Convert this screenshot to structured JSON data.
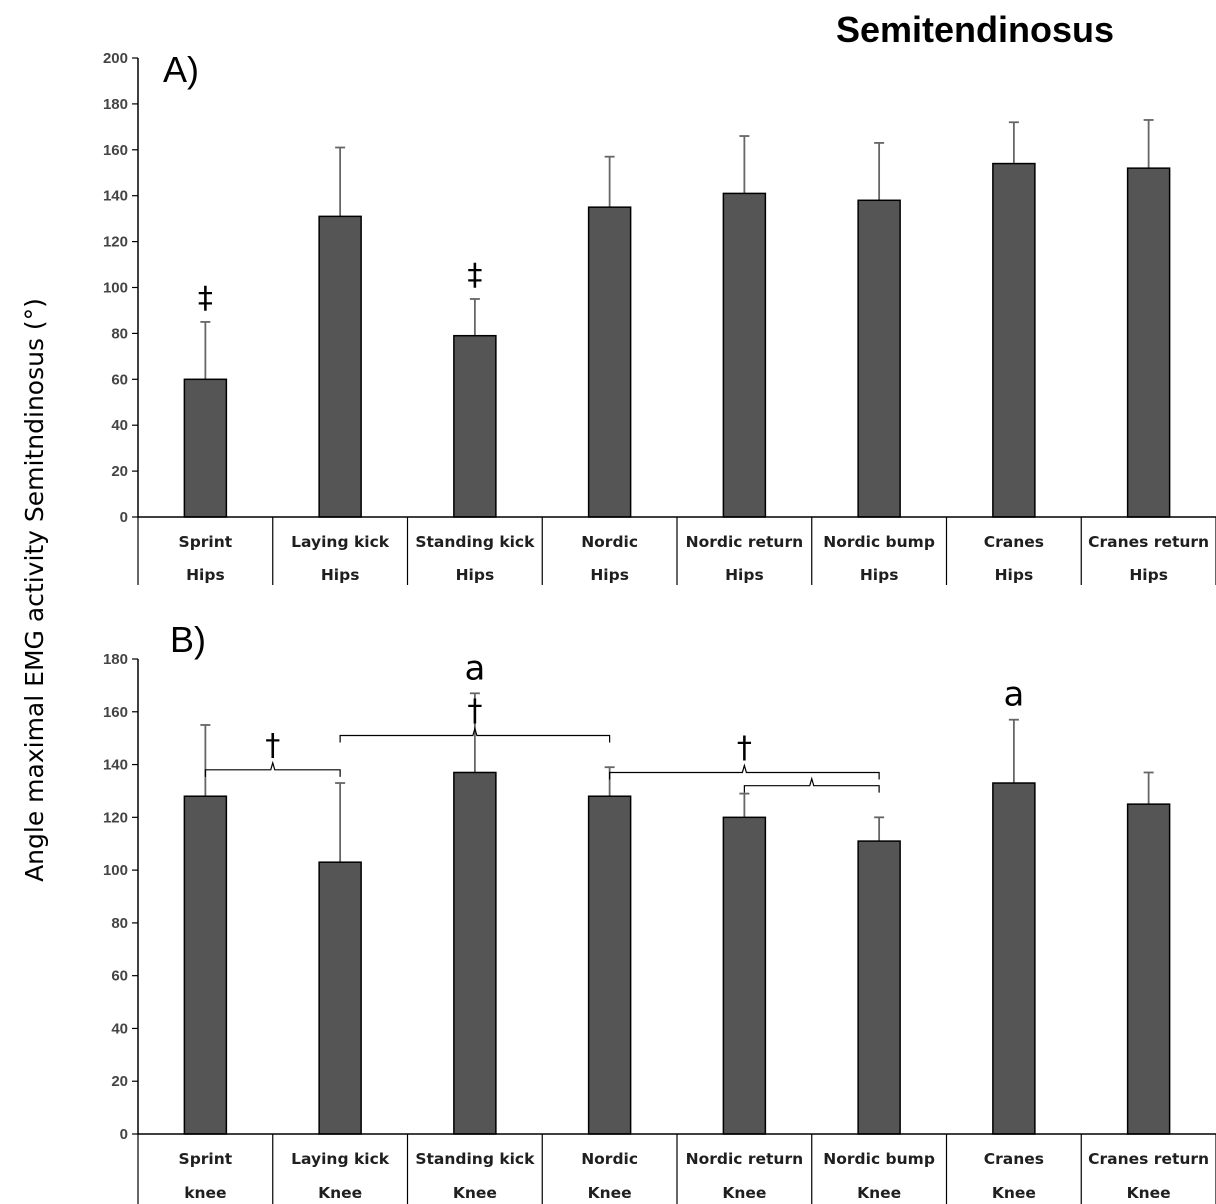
{
  "figure": {
    "title": "Semitendinosus",
    "ylabel": "Angle maximal EMG activity Semitndinosus (°)"
  },
  "colors": {
    "bar": "#555555",
    "bar_edge": "#000000",
    "error": "#666666",
    "axis": "#000000"
  },
  "chart_data": [
    {
      "type": "bar",
      "panel_label": "A)",
      "ylim": [
        0,
        200
      ],
      "yticks": [
        0,
        20,
        40,
        60,
        80,
        100,
        120,
        140,
        160,
        180,
        200
      ],
      "grid": false,
      "categories": [
        "Sprint",
        "Laying kick",
        "Standing kick",
        "Nordic",
        "Nordic return",
        "Nordic bump",
        "Cranes",
        "Cranes return"
      ],
      "sub_labels": [
        "Hips",
        "Hips",
        "Hips",
        "Hips",
        "Hips",
        "Hips",
        "Hips",
        "Hips"
      ],
      "values": [
        60,
        131,
        79,
        135,
        141,
        138,
        154,
        152
      ],
      "errors": [
        25,
        30,
        16,
        22,
        25,
        25,
        18,
        21
      ],
      "annotations": [
        {
          "index": 0,
          "text": "‡"
        },
        {
          "index": 2,
          "text": "‡"
        }
      ]
    },
    {
      "type": "bar",
      "panel_label": "B)",
      "ylim": [
        0,
        180
      ],
      "yticks": [
        0,
        20,
        40,
        60,
        80,
        100,
        120,
        140,
        160,
        180
      ],
      "grid": false,
      "categories": [
        "Sprint",
        "Laying kick",
        "Standing kick",
        "Nordic",
        "Nordic return",
        "Nordic bump",
        "Cranes",
        "Cranes return"
      ],
      "sub_labels": [
        "knee",
        "Knee",
        "Knee",
        "Knee",
        "Knee",
        "Knee",
        "Knee",
        "Knee"
      ],
      "values": [
        128,
        103,
        137,
        128,
        120,
        111,
        133,
        125
      ],
      "errors": [
        27,
        30,
        30,
        11,
        9,
        9,
        24,
        12
      ],
      "annotations": [
        {
          "index": 2,
          "text": "a"
        },
        {
          "index": 6,
          "text": "a"
        }
      ],
      "brackets": [
        {
          "from": 0,
          "to": 1,
          "level": 138,
          "label": "†"
        },
        {
          "from": 1,
          "to": 3,
          "level": 151,
          "label": "†"
        },
        {
          "from": 3,
          "to": 5,
          "level": 137,
          "label": "†"
        },
        {
          "from": 4,
          "to": 5,
          "level": 132,
          "label": ""
        }
      ]
    }
  ]
}
